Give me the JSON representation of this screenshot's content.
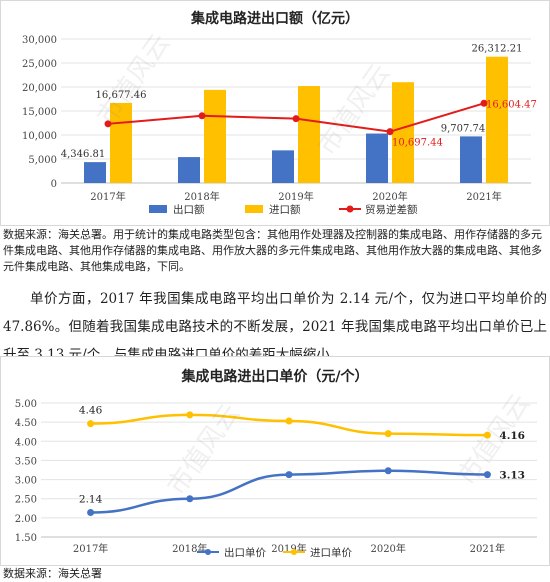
{
  "chart_data": [
    {
      "type": "bar",
      "title": "集成电路进出口额（亿元）",
      "categories": [
        "2017年",
        "2018年",
        "2019年",
        "2020年",
        "2021年"
      ],
      "ylim": [
        0,
        30000
      ],
      "yticks": [
        "0",
        "5,000",
        "10,000",
        "15,000",
        "20,000",
        "25,000",
        "30,000"
      ],
      "ytick_values": [
        0,
        5000,
        10000,
        15000,
        20000,
        25000,
        30000
      ],
      "legend_position": "bottom",
      "series": [
        {
          "name": "出口额",
          "kind": "bar",
          "color": "#4472C4",
          "values": [
            4346.81,
            5400,
            6800,
            10300,
            9707.74
          ],
          "labels": [
            "4,346.81",
            "",
            "",
            "",
            "9,707.74"
          ]
        },
        {
          "name": "进口额",
          "kind": "bar",
          "color": "#FFC000",
          "values": [
            16677.46,
            19400,
            20200,
            21000,
            26312.21
          ],
          "labels": [
            "16,677.46",
            "",
            "",
            "",
            "26,312.21"
          ]
        },
        {
          "name": "贸易逆差额",
          "kind": "line",
          "color": "#E31B1B",
          "values": [
            12330,
            14000,
            13400,
            10697.44,
            16604.47
          ],
          "labels": [
            "",
            "",
            "",
            "10,697.44",
            "16,604.47"
          ]
        }
      ]
    },
    {
      "type": "line",
      "title": "集成电路进出口单价（元/个）",
      "categories": [
        "2017年",
        "2018年",
        "2019年",
        "2020年",
        "2021年"
      ],
      "ylim": [
        1.5,
        5.0
      ],
      "yticks": [
        "1.50",
        "2.00",
        "2.50",
        "3.00",
        "3.50",
        "4.00",
        "4.50",
        "5.00"
      ],
      "ytick_values": [
        1.5,
        2.0,
        2.5,
        3.0,
        3.5,
        4.0,
        4.5,
        5.0
      ],
      "legend_position": "bottom",
      "series": [
        {
          "name": "出口单价",
          "color": "#4472C4",
          "values": [
            2.14,
            2.5,
            3.13,
            3.23,
            3.13
          ],
          "labels": [
            "2.14",
            "",
            "",
            "",
            "3.13"
          ]
        },
        {
          "name": "进口单价",
          "color": "#FFC000",
          "values": [
            4.46,
            4.69,
            4.53,
            4.2,
            4.16
          ],
          "labels": [
            "4.46",
            "",
            "",
            "",
            "4.16"
          ]
        }
      ]
    }
  ],
  "source_note_1": "数据来源：海关总署。用于统计的集成电路类型包含：其他用作处理器及控制器的集成电路、用作存储器的多元件集成电路、其他用作存储器的集成电路、用作放大器的多元件集成电路、其他用作放大器的集成电路、其他多元件集成电路、其他集成电路，下同。",
  "paragraph": "单价方面，2017 年我国集成电路平均出口单价为 2.14 元/个，仅为进口平均单价的 47.86%。但随着我国集成电路技术的不断发展，2021 年我国集成电路平均出口单价已上升至 3.13 元/个，与集成电路进口单价的差距大幅缩小。",
  "source_note_2": "数据来源：海关总署",
  "watermark": "市值风云"
}
